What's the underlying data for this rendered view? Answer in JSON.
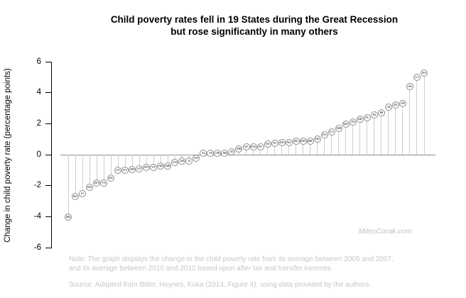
{
  "title": {
    "line1": "Child poverty rates fell in 19 States during the Great Recession",
    "line2": "but rose significantly in many others"
  },
  "watermark": "MilesCorak.com",
  "footnotes": {
    "note_line1": "Note: The graph displays the change in the child poverty rate from its average between 2005 and 2007,",
    "note_line2": "and its average between 2010 and 2012 based upon after tax and transfer incomes.",
    "source": "Source: Adapted from Bitler, Hoynes, Kuka (2014, Figure 4), using data provided by the authors."
  },
  "chart_data": {
    "type": "scatter",
    "variant": "lollipop",
    "title": "Child poverty rates fell in 19 States during the Great Recession but rose significantly in many others",
    "xlabel": "",
    "ylabel": "Change in child poverty rate (percentage points)",
    "ylim": [
      -6,
      6
    ],
    "yticks": [
      6,
      4,
      2,
      0,
      -2,
      -4,
      -6
    ],
    "grid": false,
    "baseline": 0,
    "legend": "none",
    "colors": {
      "stem": "#cfcfcf",
      "zero_line": "#8f8f8f",
      "marker_fill": "#ffffff",
      "marker_border": "#8c8c8c",
      "axis": "#000000",
      "note_text": "#c7c7c7",
      "watermark_text": "#c3c3c3"
    },
    "states": [
      {
        "abbr": "MS",
        "value": -4.0
      },
      {
        "abbr": "MA",
        "value": -2.7
      },
      {
        "abbr": "IA",
        "value": -2.5
      },
      {
        "abbr": "WV",
        "value": -2.1
      },
      {
        "abbr": "WY",
        "value": -1.8
      },
      {
        "abbr": "TX",
        "value": -1.8
      },
      {
        "abbr": "DC",
        "value": -1.5
      },
      {
        "abbr": "CT",
        "value": -1.0
      },
      {
        "abbr": "KY",
        "value": -1.0
      },
      {
        "abbr": "OR",
        "value": -0.95
      },
      {
        "abbr": "UT",
        "value": -0.9
      },
      {
        "abbr": "MT",
        "value": -0.8
      },
      {
        "abbr": "VT",
        "value": -0.8
      },
      {
        "abbr": "ND",
        "value": -0.7
      },
      {
        "abbr": "MD",
        "value": -0.7
      },
      {
        "abbr": "CO",
        "value": -0.5
      },
      {
        "abbr": "WI",
        "value": -0.4
      },
      {
        "abbr": "IL",
        "value": -0.4
      },
      {
        "abbr": "NY",
        "value": -0.2
      },
      {
        "abbr": "AL",
        "value": 0.1
      },
      {
        "abbr": "HI",
        "value": 0.1
      },
      {
        "abbr": "OK",
        "value": 0.1
      },
      {
        "abbr": "NE",
        "value": 0.1
      },
      {
        "abbr": "ID",
        "value": 0.2
      },
      {
        "abbr": "MN",
        "value": 0.4
      },
      {
        "abbr": "VA",
        "value": 0.5
      },
      {
        "abbr": "OH",
        "value": 0.5
      },
      {
        "abbr": "PA",
        "value": 0.5
      },
      {
        "abbr": "KS",
        "value": 0.7
      },
      {
        "abbr": "RI",
        "value": 0.75
      },
      {
        "abbr": "SD",
        "value": 0.8
      },
      {
        "abbr": "NJ",
        "value": 0.8
      },
      {
        "abbr": "NC",
        "value": 0.9
      },
      {
        "abbr": "MO",
        "value": 0.9
      },
      {
        "abbr": "ME",
        "value": 0.9
      },
      {
        "abbr": "NH",
        "value": 1.0
      },
      {
        "abbr": "GA",
        "value": 1.3
      },
      {
        "abbr": "CA",
        "value": 1.5
      },
      {
        "abbr": "NM",
        "value": 1.7
      },
      {
        "abbr": "WA",
        "value": 2.0
      },
      {
        "abbr": "TN",
        "value": 2.1
      },
      {
        "abbr": "DE",
        "value": 2.3
      },
      {
        "abbr": "FL",
        "value": 2.4
      },
      {
        "abbr": "IN",
        "value": 2.6
      },
      {
        "abbr": "MI",
        "value": 2.7
      },
      {
        "abbr": "AZ",
        "value": 3.1
      },
      {
        "abbr": "SC",
        "value": 3.2
      },
      {
        "abbr": "AR",
        "value": 3.3
      },
      {
        "abbr": "AK",
        "value": 4.4
      },
      {
        "abbr": "LA",
        "value": 5.0
      },
      {
        "abbr": "NV",
        "value": 5.3
      }
    ]
  }
}
